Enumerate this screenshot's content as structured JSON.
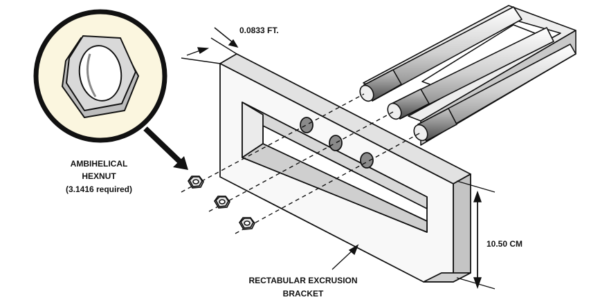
{
  "labels": {
    "thickness": "0.0833 FT.",
    "height": "10.50 CM",
    "hexnut_line1": "AMBIHELICAL",
    "hexnut_line2": "HEXNUT",
    "hexnut_line3": "(3.1416 required)",
    "bracket_line1": "RECTABULAR EXCRUSION",
    "bracket_line2": "BRACKET"
  },
  "colors": {
    "outline": "#111111",
    "face_light": "#f7f7f7",
    "face_mid": "#dedede",
    "face_dark": "#b9b9b9",
    "hole": "#8a8a8a",
    "callout_fill": "#fbf6df"
  },
  "icons": [
    "magnifier-callout",
    "hexnut-icon",
    "u-bolt",
    "bracket",
    "dimension-arrow"
  ]
}
